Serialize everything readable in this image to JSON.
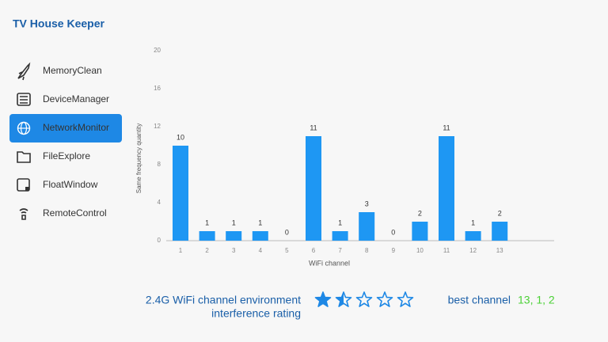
{
  "app_title": "TV House Keeper",
  "menu": [
    "MemoryClean",
    "DeviceManager",
    "NetworkMonitor",
    "FileExplore",
    "FloatWindow",
    "RemoteControl"
  ],
  "selected_menu": 2,
  "chart_data": {
    "type": "bar",
    "x_label": "WiFi channel",
    "y_label": "Same frequency quantity",
    "categories": [
      "1",
      "2",
      "3",
      "4",
      "5",
      "6",
      "7",
      "8",
      "9",
      "10",
      "11",
      "12",
      "13"
    ],
    "values": [
      10,
      1,
      1,
      1,
      0,
      11,
      1,
      3,
      0,
      2,
      11,
      1,
      2
    ],
    "color": "#1e97f3",
    "ylim": [
      0,
      20
    ],
    "yticks": [
      0,
      4,
      8,
      12,
      16,
      20
    ],
    "grid": false
  },
  "rating_label": [
    "2.4G WiFi channel environment",
    "interference rating"
  ],
  "rating": 1.5,
  "rating_max": 5,
  "best_channel_label": "best channel",
  "best_channel": "13, 1, 2"
}
